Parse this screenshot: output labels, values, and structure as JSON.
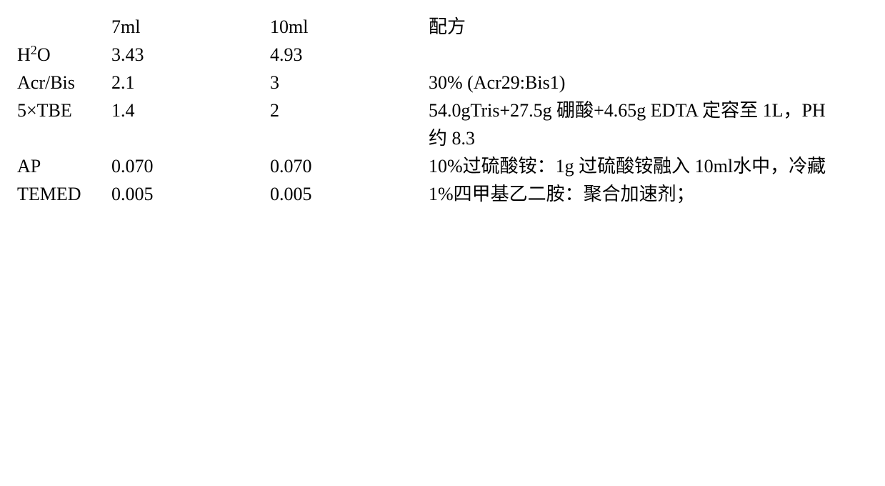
{
  "table": {
    "font_size_pt": 20,
    "font_family": "SimSun / Times New Roman",
    "text_color": "#000000",
    "background_color": "#ffffff",
    "columns": {
      "c0": "",
      "c1": "7ml",
      "c2": "10ml",
      "c3": "配方"
    },
    "rows": {
      "h2o": {
        "label_html": "H<sub>2</sub>O",
        "label_plain": "H2O",
        "v7": "3.43",
        "v10": "4.93",
        "recipe": ""
      },
      "acrbis": {
        "label": "Acr/Bis",
        "v7": "2.1",
        "v10": "3",
        "recipe": "30% (Acr29:Bis1)"
      },
      "tbe": {
        "label": "5×TBE",
        "v7": "1.4",
        "v10": "2",
        "recipe": "54.0gTris+27.5g 硼酸+4.65g EDTA 定容至 1L，PH 约 8.3"
      },
      "ap": {
        "label": "AP",
        "v7": "0.070",
        "v10": "0.070",
        "recipe": "10%过硫酸铵：1g 过硫酸铵融入 10ml水中，冷藏"
      },
      "temed": {
        "label": "TEMED",
        "v7": "0.005",
        "v10": "0.005",
        "recipe": "1%四甲基乙二胺：聚合加速剂；"
      }
    }
  }
}
